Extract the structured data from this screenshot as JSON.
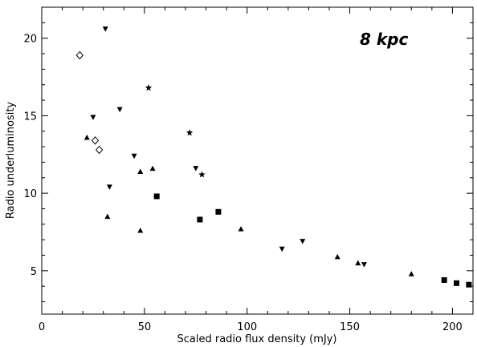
{
  "chart_data": {
    "type": "scatter",
    "title": "",
    "xlabel": "Scaled radio flux density (mJy)",
    "ylabel": "Radio underluminosity",
    "annotation": "8 kpc",
    "xlim": [
      0,
      210
    ],
    "ylim": [
      2.2,
      22
    ],
    "xticks": [
      0,
      50,
      100,
      150,
      200
    ],
    "yticks": [
      5,
      10,
      15,
      20
    ],
    "grid": false,
    "legend": "none",
    "series": [
      {
        "marker": "diamond-open",
        "points": [
          [
            18.5,
            18.9
          ],
          [
            26.0,
            13.4
          ],
          [
            28.0,
            12.8
          ]
        ]
      },
      {
        "marker": "triangle-down",
        "points": [
          [
            31.0,
            20.6
          ],
          [
            25.0,
            14.9
          ],
          [
            38.0,
            15.4
          ],
          [
            45.0,
            12.4
          ],
          [
            33.0,
            10.4
          ],
          [
            75.0,
            11.6
          ],
          [
            117.0,
            6.4
          ],
          [
            127.0,
            6.9
          ],
          [
            157.0,
            5.4
          ]
        ]
      },
      {
        "marker": "triangle-up",
        "points": [
          [
            22.0,
            13.6
          ],
          [
            48.0,
            11.4
          ],
          [
            54.0,
            11.6
          ],
          [
            32.0,
            8.5
          ],
          [
            48.0,
            7.6
          ],
          [
            97.0,
            7.7
          ],
          [
            144.0,
            5.9
          ],
          [
            154.0,
            5.5
          ],
          [
            180.0,
            4.8
          ]
        ]
      },
      {
        "marker": "star",
        "points": [
          [
            52.0,
            16.8
          ],
          [
            72.0,
            13.9
          ],
          [
            78.0,
            11.2
          ]
        ]
      },
      {
        "marker": "square",
        "points": [
          [
            56.0,
            9.8
          ],
          [
            77.0,
            8.3
          ],
          [
            86.0,
            8.8
          ],
          [
            196.0,
            4.4
          ],
          [
            202.0,
            4.2
          ],
          [
            208.0,
            4.1
          ]
        ]
      }
    ]
  }
}
